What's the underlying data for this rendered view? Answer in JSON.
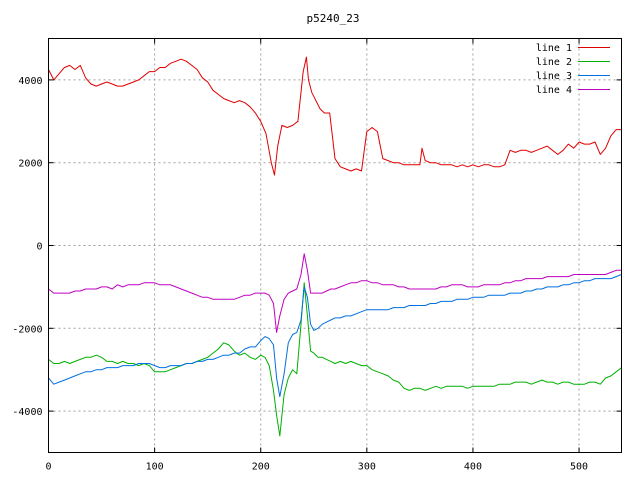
{
  "chart_data": {
    "type": "line",
    "title": "p5240_23",
    "xlabel": "",
    "ylabel": "",
    "xlim": [
      0,
      540
    ],
    "ylim": [
      -5000,
      5000
    ],
    "xticks": [
      0,
      100,
      200,
      300,
      400,
      500
    ],
    "yticks": [
      -4000,
      -2000,
      0,
      2000,
      4000
    ],
    "grid": true,
    "legend_position": "top-right",
    "series": [
      {
        "name": "line 1",
        "color": "#e00000",
        "x": [
          0,
          5,
          10,
          15,
          20,
          25,
          30,
          35,
          40,
          45,
          50,
          55,
          60,
          65,
          70,
          75,
          80,
          85,
          90,
          95,
          100,
          105,
          110,
          115,
          120,
          125,
          130,
          135,
          140,
          145,
          150,
          155,
          160,
          165,
          170,
          175,
          180,
          185,
          190,
          195,
          200,
          205,
          210,
          213,
          216,
          220,
          225,
          230,
          235,
          240,
          243,
          245,
          248,
          252,
          256,
          260,
          265,
          270,
          275,
          280,
          285,
          290,
          295,
          300,
          305,
          310,
          315,
          320,
          325,
          330,
          335,
          340,
          345,
          350,
          352,
          355,
          360,
          365,
          370,
          375,
          380,
          385,
          390,
          395,
          400,
          405,
          410,
          415,
          420,
          425,
          430,
          435,
          440,
          445,
          450,
          455,
          460,
          465,
          470,
          475,
          480,
          485,
          490,
          495,
          500,
          505,
          510,
          515,
          520,
          525,
          530,
          535,
          540
        ],
        "y": [
          4250,
          4000,
          4150,
          4300,
          4350,
          4250,
          4350,
          4050,
          3900,
          3850,
          3900,
          3950,
          3900,
          3850,
          3850,
          3900,
          3950,
          4000,
          4100,
          4200,
          4200,
          4300,
          4300,
          4400,
          4450,
          4500,
          4450,
          4350,
          4250,
          4050,
          3950,
          3750,
          3650,
          3550,
          3500,
          3450,
          3500,
          3450,
          3350,
          3200,
          3000,
          2700,
          2000,
          1700,
          2400,
          2900,
          2850,
          2900,
          3000,
          4200,
          4550,
          4000,
          3700,
          3500,
          3300,
          3200,
          3200,
          2100,
          1900,
          1850,
          1800,
          1850,
          1800,
          2750,
          2850,
          2750,
          2100,
          2050,
          2000,
          2000,
          1950,
          1950,
          1950,
          1950,
          2350,
          2050,
          2000,
          2000,
          1950,
          1950,
          1950,
          1900,
          1950,
          1900,
          1950,
          1900,
          1950,
          1950,
          1900,
          1900,
          1950,
          2300,
          2250,
          2300,
          2300,
          2250,
          2300,
          2350,
          2400,
          2300,
          2200,
          2300,
          2450,
          2350,
          2500,
          2450,
          2450,
          2500,
          2200,
          2350,
          2650,
          2800,
          2800
        ]
      },
      {
        "name": "line 2",
        "color": "#00b000",
        "x": [
          0,
          5,
          10,
          15,
          20,
          25,
          30,
          35,
          40,
          45,
          50,
          55,
          60,
          65,
          70,
          75,
          80,
          85,
          90,
          95,
          100,
          105,
          110,
          115,
          120,
          125,
          130,
          135,
          140,
          145,
          150,
          155,
          160,
          165,
          170,
          175,
          180,
          185,
          190,
          195,
          200,
          204,
          208,
          212,
          215,
          218,
          222,
          226,
          230,
          234,
          238,
          241,
          244,
          247,
          250,
          254,
          258,
          262,
          266,
          270,
          275,
          280,
          285,
          290,
          295,
          300,
          305,
          310,
          315,
          320,
          325,
          330,
          335,
          340,
          345,
          350,
          355,
          360,
          365,
          370,
          375,
          380,
          385,
          390,
          395,
          400,
          405,
          410,
          415,
          420,
          425,
          430,
          435,
          440,
          445,
          450,
          455,
          460,
          465,
          470,
          475,
          480,
          485,
          490,
          495,
          500,
          505,
          510,
          515,
          520,
          525,
          530,
          535,
          540
        ],
        "y": [
          -2750,
          -2850,
          -2850,
          -2800,
          -2850,
          -2800,
          -2750,
          -2700,
          -2700,
          -2650,
          -2700,
          -2800,
          -2800,
          -2850,
          -2800,
          -2850,
          -2850,
          -2900,
          -2850,
          -2900,
          -3050,
          -3050,
          -3050,
          -3000,
          -2950,
          -2900,
          -2850,
          -2850,
          -2800,
          -2750,
          -2700,
          -2600,
          -2500,
          -2350,
          -2400,
          -2550,
          -2650,
          -2600,
          -2700,
          -2750,
          -2650,
          -2700,
          -2900,
          -3500,
          -4100,
          -4600,
          -3600,
          -3200,
          -3000,
          -3100,
          -1900,
          -900,
          -1700,
          -2550,
          -2600,
          -2700,
          -2700,
          -2750,
          -2800,
          -2850,
          -2800,
          -2850,
          -2800,
          -2850,
          -2900,
          -2900,
          -3000,
          -3050,
          -3100,
          -3150,
          -3250,
          -3300,
          -3450,
          -3500,
          -3450,
          -3450,
          -3500,
          -3450,
          -3400,
          -3450,
          -3400,
          -3400,
          -3400,
          -3400,
          -3450,
          -3400,
          -3400,
          -3400,
          -3400,
          -3400,
          -3350,
          -3350,
          -3350,
          -3300,
          -3300,
          -3300,
          -3350,
          -3300,
          -3250,
          -3300,
          -3300,
          -3350,
          -3300,
          -3300,
          -3350,
          -3350,
          -3350,
          -3300,
          -3300,
          -3350,
          -3200,
          -3150,
          -3050,
          -2950
        ]
      },
      {
        "name": "line 3",
        "color": "#0070e0",
        "x": [
          0,
          5,
          10,
          15,
          20,
          25,
          30,
          35,
          40,
          45,
          50,
          55,
          60,
          65,
          70,
          75,
          80,
          85,
          90,
          95,
          100,
          105,
          110,
          115,
          120,
          125,
          130,
          135,
          140,
          145,
          150,
          155,
          160,
          165,
          170,
          175,
          180,
          185,
          190,
          195,
          200,
          204,
          208,
          212,
          215,
          218,
          222,
          226,
          230,
          234,
          238,
          241,
          244,
          247,
          250,
          254,
          258,
          262,
          266,
          270,
          275,
          280,
          285,
          290,
          295,
          300,
          305,
          310,
          315,
          320,
          325,
          330,
          335,
          340,
          345,
          350,
          355,
          360,
          365,
          370,
          375,
          380,
          385,
          390,
          395,
          400,
          405,
          410,
          415,
          420,
          425,
          430,
          435,
          440,
          445,
          450,
          455,
          460,
          465,
          470,
          475,
          480,
          485,
          490,
          495,
          500,
          505,
          510,
          515,
          520,
          525,
          530,
          535,
          540
        ],
        "y": [
          -3200,
          -3350,
          -3300,
          -3250,
          -3200,
          -3150,
          -3100,
          -3050,
          -3050,
          -3000,
          -3000,
          -2950,
          -2950,
          -2950,
          -2900,
          -2900,
          -2900,
          -2850,
          -2850,
          -2850,
          -2900,
          -2950,
          -2950,
          -2900,
          -2900,
          -2900,
          -2850,
          -2850,
          -2800,
          -2800,
          -2750,
          -2750,
          -2700,
          -2650,
          -2650,
          -2600,
          -2600,
          -2500,
          -2450,
          -2450,
          -2300,
          -2200,
          -2250,
          -2400,
          -3200,
          -3650,
          -3100,
          -2350,
          -2150,
          -2100,
          -1800,
          -1000,
          -1250,
          -1900,
          -2050,
          -2000,
          -1900,
          -1850,
          -1800,
          -1750,
          -1750,
          -1700,
          -1700,
          -1650,
          -1600,
          -1550,
          -1550,
          -1550,
          -1550,
          -1550,
          -1500,
          -1500,
          -1500,
          -1450,
          -1450,
          -1450,
          -1450,
          -1400,
          -1400,
          -1350,
          -1350,
          -1350,
          -1300,
          -1300,
          -1300,
          -1250,
          -1250,
          -1250,
          -1200,
          -1200,
          -1200,
          -1200,
          -1150,
          -1150,
          -1150,
          -1100,
          -1100,
          -1050,
          -1050,
          -1000,
          -1000,
          -1000,
          -950,
          -950,
          -900,
          -900,
          -850,
          -850,
          -800,
          -800,
          -800,
          -800,
          -750,
          -700
        ]
      },
      {
        "name": "line 4",
        "color": "#c000c0",
        "x": [
          0,
          5,
          10,
          15,
          20,
          25,
          30,
          35,
          40,
          45,
          50,
          55,
          60,
          65,
          70,
          75,
          80,
          85,
          90,
          95,
          100,
          105,
          110,
          115,
          120,
          125,
          130,
          135,
          140,
          145,
          150,
          155,
          160,
          165,
          170,
          175,
          180,
          185,
          190,
          195,
          200,
          204,
          208,
          212,
          215,
          218,
          222,
          226,
          230,
          234,
          238,
          241,
          244,
          247,
          250,
          254,
          258,
          262,
          266,
          270,
          275,
          280,
          285,
          290,
          295,
          300,
          305,
          310,
          315,
          320,
          325,
          330,
          335,
          340,
          345,
          350,
          355,
          360,
          365,
          370,
          375,
          380,
          385,
          390,
          395,
          400,
          405,
          410,
          415,
          420,
          425,
          430,
          435,
          440,
          445,
          450,
          455,
          460,
          465,
          470,
          475,
          480,
          485,
          490,
          495,
          500,
          505,
          510,
          515,
          520,
          525,
          530,
          535,
          540
        ],
        "y": [
          -1050,
          -1150,
          -1150,
          -1150,
          -1150,
          -1100,
          -1100,
          -1050,
          -1050,
          -1050,
          -1000,
          -1000,
          -1050,
          -950,
          -1000,
          -950,
          -950,
          -950,
          -900,
          -900,
          -900,
          -950,
          -950,
          -950,
          -1000,
          -1050,
          -1100,
          -1150,
          -1200,
          -1250,
          -1250,
          -1300,
          -1300,
          -1300,
          -1300,
          -1300,
          -1250,
          -1200,
          -1200,
          -1150,
          -1150,
          -1150,
          -1200,
          -1400,
          -2100,
          -1700,
          -1300,
          -1150,
          -1100,
          -1050,
          -700,
          -200,
          -600,
          -1150,
          -1150,
          -1150,
          -1150,
          -1100,
          -1050,
          -1050,
          -1000,
          -950,
          -900,
          -900,
          -850,
          -850,
          -900,
          -900,
          -950,
          -950,
          -950,
          -1000,
          -1000,
          -1050,
          -1050,
          -1050,
          -1050,
          -1050,
          -1050,
          -1000,
          -1000,
          -950,
          -950,
          -950,
          -1000,
          -1000,
          -1000,
          -950,
          -950,
          -950,
          -950,
          -900,
          -900,
          -850,
          -850,
          -800,
          -800,
          -800,
          -800,
          -750,
          -750,
          -750,
          -750,
          -750,
          -700,
          -700,
          -700,
          -700,
          -700,
          -700,
          -700,
          -650,
          -600,
          -600
        ]
      }
    ]
  }
}
